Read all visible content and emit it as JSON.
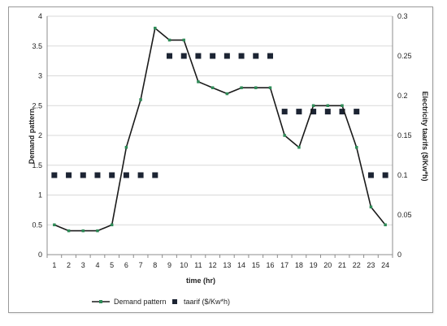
{
  "chart_data": {
    "type": "line",
    "x": [
      1,
      2,
      3,
      4,
      5,
      6,
      7,
      8,
      9,
      10,
      11,
      12,
      13,
      14,
      15,
      16,
      17,
      18,
      19,
      20,
      21,
      22,
      23,
      24
    ],
    "xlabel": "time (hr)",
    "series": [
      {
        "name": "Demand pattern",
        "axis": "left",
        "style": "line-with-markers",
        "color": "#1a1a1a",
        "marker_color": "#2e8b57",
        "values": [
          0.5,
          0.4,
          0.4,
          0.4,
          0.5,
          1.8,
          2.6,
          3.8,
          3.6,
          3.6,
          2.9,
          2.8,
          2.7,
          2.8,
          2.8,
          2.8,
          2.0,
          1.8,
          2.5,
          2.5,
          2.5,
          1.8,
          0.8,
          0.5
        ]
      },
      {
        "name": "taarif ($/Kw*h)",
        "axis": "right",
        "style": "markers-only",
        "color": "#1c2433",
        "values": [
          0.1,
          0.1,
          0.1,
          0.1,
          0.1,
          0.1,
          0.1,
          0.1,
          0.25,
          0.25,
          0.25,
          0.25,
          0.25,
          0.25,
          0.25,
          0.25,
          0.18,
          0.18,
          0.18,
          0.18,
          0.18,
          0.18,
          0.1,
          0.1
        ]
      }
    ],
    "left_axis": {
      "label": "Demand pattern",
      "ylim": [
        0,
        4
      ],
      "ticks": [
        "0",
        "0.5",
        "1",
        "1.5",
        "2",
        "2.5",
        "3",
        "3.5",
        "4"
      ]
    },
    "right_axis": {
      "label": "Electricity taarifs ($/Kw*h)",
      "ylim": [
        0,
        0.3
      ],
      "ticks": [
        "0",
        "0.05",
        "0.1",
        "0.15",
        "0.2",
        "0.25",
        "0.3"
      ]
    },
    "grid": "horizontal",
    "legend_placement": "bottom"
  }
}
